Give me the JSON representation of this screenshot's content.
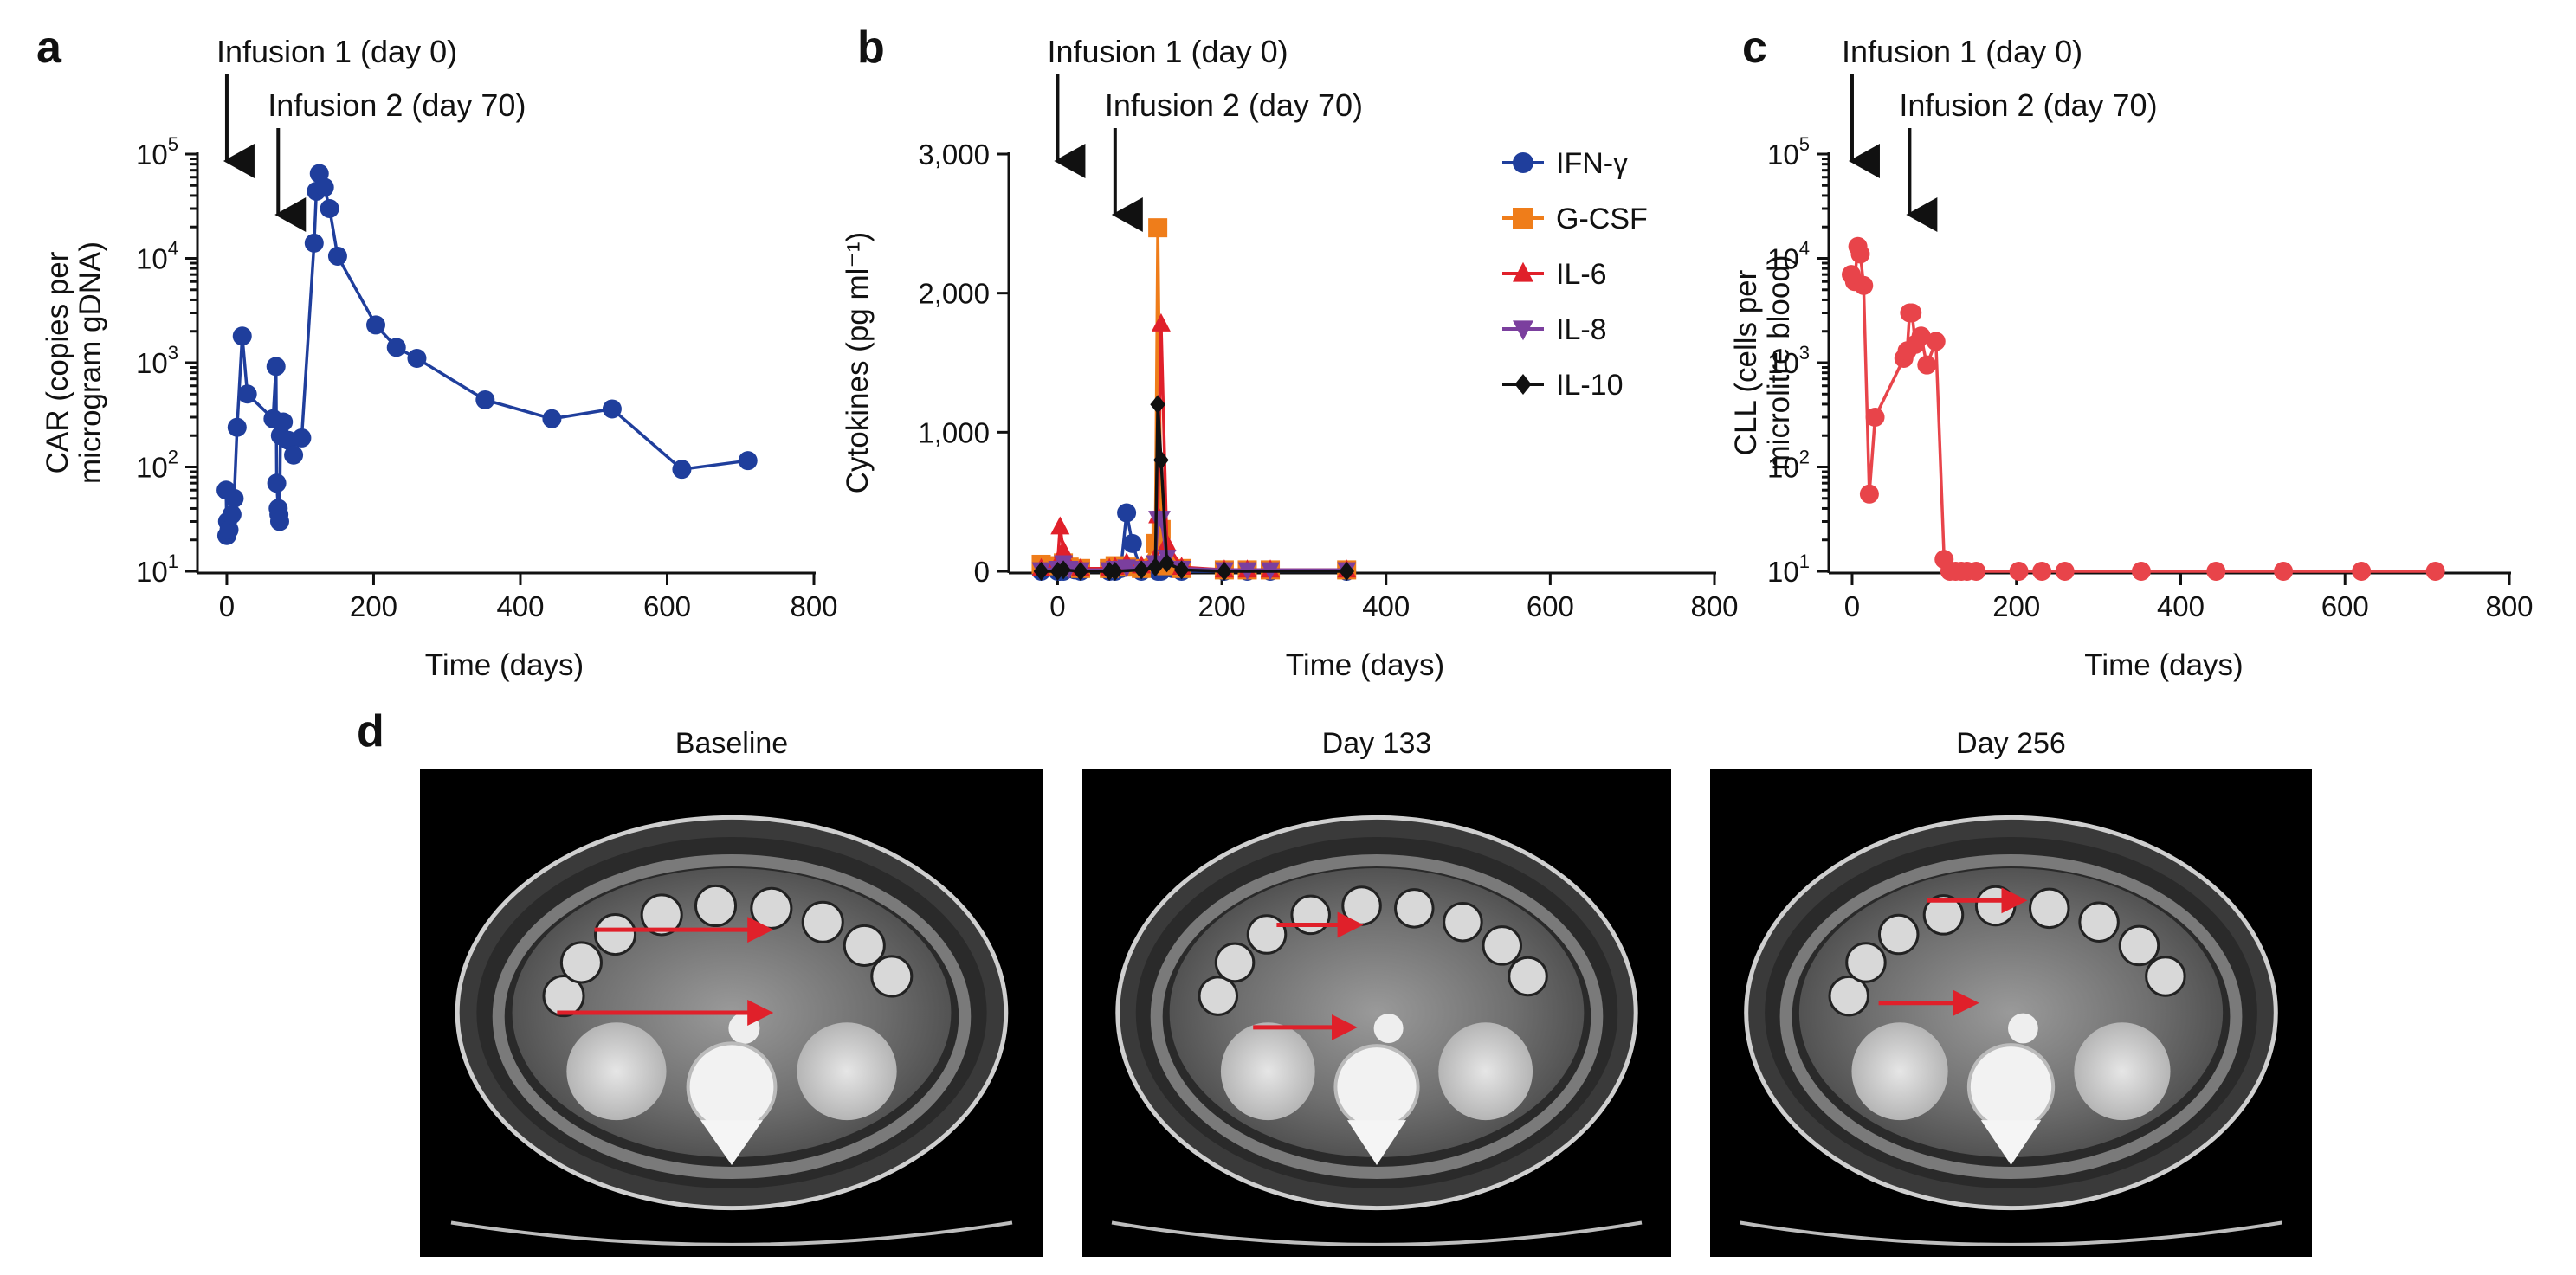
{
  "panels": {
    "a": "a",
    "b": "b",
    "c": "c",
    "d": "d"
  },
  "chart_data": [
    {
      "panel": "a",
      "type": "line",
      "ylabel": [
        "CAR (copies per",
        "microgram gDNA)"
      ],
      "xlabel": "Time (days)",
      "yscale": "log",
      "xlim": [
        -20,
        800
      ],
      "ylim": [
        10,
        100000
      ],
      "xticks": [
        "0",
        "200",
        "400",
        "600",
        "800"
      ],
      "yticks": [
        {
          "base": "10",
          "exp": "1"
        },
        {
          "base": "10",
          "exp": "2"
        },
        {
          "base": "10",
          "exp": "3"
        },
        {
          "base": "10",
          "exp": "4"
        },
        {
          "base": "10",
          "exp": "5"
        }
      ],
      "annotations": [
        {
          "text": "Infusion 1 (day 0)",
          "day": 0
        },
        {
          "text": "Infusion 2 (day 70)",
          "day": 70
        }
      ],
      "colors": {
        "series": "#1f3e9c"
      },
      "series": [
        {
          "x": [
            -1,
            0,
            1,
            3,
            7,
            10,
            14,
            21,
            28,
            63,
            67,
            68,
            70,
            71,
            72,
            73,
            77,
            84,
            91,
            102,
            119,
            122,
            126,
            133,
            140,
            151,
            203,
            231,
            259,
            352,
            443,
            525,
            620,
            710
          ],
          "y": [
            60,
            22,
            30,
            25,
            35,
            50,
            240,
            1800,
            500,
            290,
            920,
            70,
            40,
            35,
            30,
            200,
            270,
            180,
            130,
            190,
            14000,
            44000,
            65000,
            48000,
            30000,
            10500,
            2300,
            1400,
            1100,
            440,
            290,
            360,
            95,
            115
          ]
        }
      ]
    },
    {
      "panel": "b",
      "type": "line",
      "ylabel": "Cytokines (pg ml⁻¹)",
      "xlabel": "Time (days)",
      "xlim": [
        -30,
        800
      ],
      "ylim": [
        0,
        3000
      ],
      "xticks": [
        "0",
        "200",
        "400",
        "600",
        "800"
      ],
      "yticks": [
        "0",
        "1,000",
        "2,000",
        "3,000"
      ],
      "annotations": [
        {
          "text": "Infusion 1 (day 0)",
          "day": 0
        },
        {
          "text": "Infusion 2 (day 70)",
          "day": 70
        }
      ],
      "legend": {
        "placement": "top-right"
      },
      "series": [
        {
          "name": "IFN-γ",
          "color": "#1f3e9c",
          "marker": "circle",
          "x": [
            -20,
            0,
            3,
            7,
            14,
            21,
            28,
            63,
            70,
            77,
            84,
            91,
            102,
            119,
            122,
            126,
            133,
            140,
            151,
            203,
            231,
            259,
            352
          ],
          "y": [
            0,
            0,
            0,
            0,
            20,
            10,
            0,
            0,
            0,
            20,
            420,
            200,
            0,
            40,
            0,
            0,
            30,
            20,
            0,
            0,
            0,
            0,
            0
          ]
        },
        {
          "name": "G-CSF",
          "color": "#ef7d1a",
          "marker": "square",
          "x": [
            -20,
            0,
            7,
            14,
            28,
            63,
            70,
            84,
            102,
            119,
            122,
            126,
            133,
            151,
            203,
            231,
            259,
            352
          ],
          "y": [
            50,
            40,
            60,
            30,
            20,
            20,
            40,
            30,
            20,
            200,
            2470,
            300,
            40,
            20,
            10,
            10,
            10,
            10
          ]
        },
        {
          "name": "IL-6",
          "color": "#e0202a",
          "marker": "triangle",
          "x": [
            -20,
            0,
            3,
            7,
            14,
            28,
            63,
            70,
            84,
            102,
            119,
            122,
            126,
            133,
            151,
            203,
            231,
            259,
            352
          ],
          "y": [
            20,
            60,
            320,
            150,
            40,
            20,
            20,
            30,
            60,
            40,
            100,
            400,
            1780,
            200,
            30,
            10,
            10,
            10,
            10
          ]
        },
        {
          "name": "IL-8",
          "color": "#7b3f9e",
          "marker": "triangle-down",
          "x": [
            -20,
            0,
            7,
            14,
            28,
            63,
            70,
            84,
            102,
            119,
            122,
            126,
            133,
            151,
            203,
            231,
            259,
            352
          ],
          "y": [
            10,
            20,
            60,
            20,
            10,
            10,
            20,
            30,
            20,
            60,
            380,
            380,
            100,
            20,
            10,
            10,
            10,
            10
          ]
        },
        {
          "name": "IL-10",
          "color": "#111111",
          "marker": "diamond",
          "x": [
            -20,
            0,
            7,
            28,
            63,
            70,
            102,
            119,
            122,
            126,
            133,
            151,
            203,
            352
          ],
          "y": [
            0,
            0,
            10,
            0,
            0,
            0,
            10,
            30,
            1200,
            800,
            60,
            10,
            0,
            0
          ]
        }
      ]
    },
    {
      "panel": "c",
      "type": "line",
      "ylabel": [
        "CLL (cells per",
        "microlitre blood)"
      ],
      "xlabel": "Time (days)",
      "yscale": "log",
      "xlim": [
        -20,
        800
      ],
      "ylim": [
        10,
        100000
      ],
      "xticks": [
        "0",
        "200",
        "400",
        "600",
        "800"
      ],
      "yticks": [
        {
          "base": "10",
          "exp": "1"
        },
        {
          "base": "10",
          "exp": "2"
        },
        {
          "base": "10",
          "exp": "3"
        },
        {
          "base": "10",
          "exp": "4"
        },
        {
          "base": "10",
          "exp": "5"
        }
      ],
      "annotations": [
        {
          "text": "Infusion 1 (day 0)",
          "day": 0
        },
        {
          "text": "Infusion 2 (day 70)",
          "day": 70
        }
      ],
      "colors": {
        "series": "#e8444a"
      },
      "series": [
        {
          "x": [
            -1,
            3,
            7,
            10,
            14,
            21,
            28,
            63,
            67,
            70,
            73,
            77,
            84,
            91,
            102,
            112,
            119,
            126,
            133,
            140,
            151,
            203,
            231,
            259,
            352,
            443,
            525,
            620,
            710
          ],
          "y": [
            7000,
            6000,
            13000,
            11000,
            5500,
            55,
            300,
            1100,
            1300,
            3000,
            3000,
            1500,
            1800,
            950,
            1600,
            13,
            10,
            10,
            10,
            10,
            10,
            10,
            10,
            10,
            10,
            10,
            10,
            10,
            10
          ]
        }
      ]
    }
  ],
  "ct_panel": {
    "images": [
      {
        "title": "Baseline"
      },
      {
        "title": "Day 133"
      },
      {
        "title": "Day 256"
      }
    ],
    "colors": {
      "arrow": "#e0202a",
      "background": "#000000"
    }
  }
}
